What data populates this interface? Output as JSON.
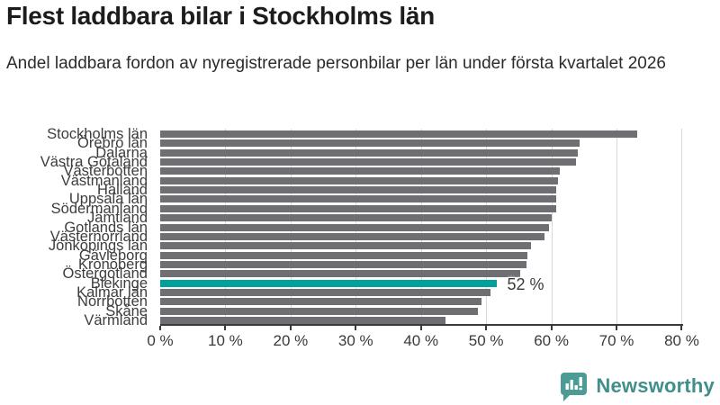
{
  "header": {
    "title": "Flest laddbara bilar i Stockholms län",
    "subtitle": "Andel laddbara fordon av nyregistrerade personbilar per län under första kvartalet 2026"
  },
  "chart_data": {
    "type": "bar",
    "orientation": "horizontal",
    "title": "Flest laddbara bilar i Stockholms län",
    "subtitle": "Andel laddbara fordon av nyregistrerade personbilar per län under första kvartalet 2026",
    "categories": [
      "Stockholms län",
      "Örebro län",
      "Dalarna",
      "Västra Götaland",
      "Västerbotten",
      "Västmanland",
      "Halland",
      "Uppsala län",
      "Södermanland",
      "Jämtland",
      "Gotlands län",
      "Västernorrland",
      "Jönköpings län",
      "Gävleborg",
      "Kronoberg",
      "Östergötland",
      "Blekinge",
      "Kalmar län",
      "Norrbotten",
      "Skåne",
      "Värmland"
    ],
    "values": [
      73.2,
      64.3,
      64.1,
      63.8,
      61.3,
      61.0,
      60.8,
      60.8,
      60.8,
      60.1,
      59.6,
      59.0,
      56.9,
      56.3,
      56.2,
      55.2,
      51.7,
      50.7,
      49.3,
      48.7,
      43.7
    ],
    "unit": "%",
    "xlim": [
      0,
      80
    ],
    "x_ticks": [
      "0 %",
      "10 %",
      "20 %",
      "30 %",
      "40 %",
      "50 %",
      "60 %",
      "70 %",
      "80 %"
    ],
    "grid": true,
    "legend": "none",
    "highlight": {
      "index": 16,
      "category": "Blekinge",
      "label": "52 %"
    },
    "bar_color": "#6e6e73",
    "highlight_color": "#00a09b",
    "gridline_color": "#d9d9db",
    "axis_color": "#3a3a3a"
  },
  "footer": {
    "brand": "Newsworthy",
    "logo_icon": "bar-chart-speech-bubble-icon",
    "brand_color": "#3f8f8a",
    "icon_color": "#4c9c95"
  }
}
